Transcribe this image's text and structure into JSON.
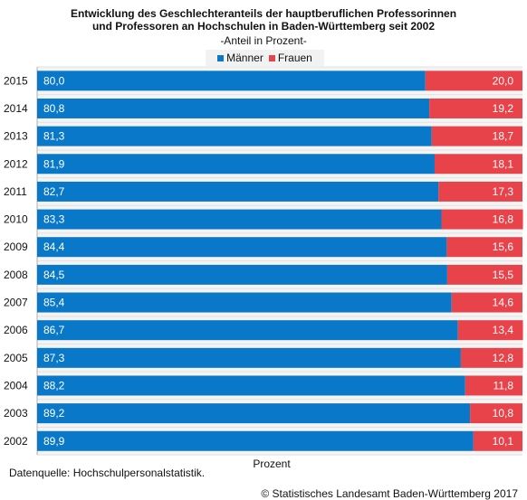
{
  "chart_data": {
    "type": "bar",
    "orientation": "horizontal",
    "stacked": "percent",
    "title_lines": [
      "Entwicklung des Geschlechteranteils der hauptberuflichen Professorinnen",
      "und Professoren an Hochschulen in Baden-Württemberg seit 2002"
    ],
    "subtitle": "-Anteil in Prozent-",
    "xlabel": "Prozent",
    "categories": [
      "2015",
      "2014",
      "2013",
      "2012",
      "2011",
      "2010",
      "2009",
      "2008",
      "2007",
      "2006",
      "2005",
      "2004",
      "2003",
      "2002"
    ],
    "series": [
      {
        "name": "Männer",
        "color": "#0a78c8",
        "values": [
          80.0,
          80.8,
          81.3,
          81.9,
          82.7,
          83.3,
          84.4,
          84.5,
          85.4,
          86.7,
          87.3,
          88.2,
          89.2,
          89.9
        ]
      },
      {
        "name": "Frauen",
        "color": "#e8434a",
        "values": [
          20.0,
          19.2,
          18.7,
          18.1,
          17.3,
          16.8,
          15.6,
          15.5,
          14.6,
          13.4,
          12.8,
          11.8,
          10.8,
          10.1
        ]
      }
    ],
    "value_labels": {
      "Männer": [
        "80,0",
        "80,8",
        "81,3",
        "81,9",
        "82,7",
        "83,3",
        "84,4",
        "84,5",
        "85,4",
        "86,7",
        "87,3",
        "88,2",
        "89,2",
        "89,9"
      ],
      "Frauen": [
        "20,0",
        "19,2",
        "18,7",
        "18,1",
        "17,3",
        "16,8",
        "15,6",
        "15,5",
        "14,6",
        "13,4",
        "12,8",
        "11,8",
        "10,8",
        "10,1"
      ]
    },
    "xlim": [
      0,
      100
    ],
    "legend_position": "top-center",
    "grid": true
  },
  "footer": {
    "source": "Datenquelle: Hochschulpersonalstatistik.",
    "copyright": "© Statistisches Landesamt Baden-Württemberg 2017"
  }
}
